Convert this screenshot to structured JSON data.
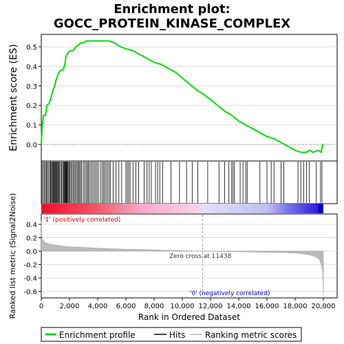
{
  "chart_data": {
    "type": "line",
    "title_line1": "Enrichment plot:",
    "title_line2": "GOCC_PROTEIN_KINASE_COMPLEX",
    "xlabel": "Rank in Ordered Dataset",
    "ylabel_top": "Enrichment score (ES)",
    "ylabel_bottom": "Ranked list metric (Signal2Noise)",
    "xlim": [
      0,
      20000
    ],
    "es_ylim": [
      0.0,
      0.5
    ],
    "metric_ylim": [
      -0.6,
      0.4
    ],
    "x_ticks": [
      "0",
      "2,000",
      "4,000",
      "6,000",
      "8,000",
      "10,000",
      "12,000",
      "14,000",
      "16,000",
      "18,000",
      "20,000"
    ],
    "es_ticks": [
      "0.0",
      "0.1",
      "0.2",
      "0.3",
      "0.4",
      "0.5"
    ],
    "metric_ticks": [
      "0.4",
      "0.2",
      "0.0",
      "-0.2",
      "-0.4",
      "-0.6"
    ],
    "zero_cross_label": "Zero cross at 11438",
    "zero_cross": 11438,
    "positive_label": "'1' (positively correlated)",
    "negative_label": "'0' (negatively correlated)",
    "legend": [
      "Enrichment profile",
      "Hits",
      "Ranking metric scores"
    ],
    "colors": {
      "es_line": "#00dd00",
      "hits": "#000000",
      "metric_fill": "#bbbbbb",
      "positive_text": "#cc0000",
      "negative_text": "#0000cc"
    },
    "enrichment_profile": [
      [
        0,
        0.0
      ],
      [
        60,
        0.09
      ],
      [
        150,
        0.15
      ],
      [
        300,
        0.15
      ],
      [
        400,
        0.2
      ],
      [
        550,
        0.21
      ],
      [
        650,
        0.23
      ],
      [
        800,
        0.27
      ],
      [
        950,
        0.3
      ],
      [
        1050,
        0.33
      ],
      [
        1200,
        0.36
      ],
      [
        1350,
        0.38
      ],
      [
        1500,
        0.38
      ],
      [
        1650,
        0.4
      ],
      [
        1750,
        0.45
      ],
      [
        1900,
        0.47
      ],
      [
        2050,
        0.48
      ],
      [
        2250,
        0.48
      ],
      [
        2450,
        0.5
      ],
      [
        2650,
        0.51
      ],
      [
        2800,
        0.52
      ],
      [
        3000,
        0.52
      ],
      [
        3200,
        0.53
      ],
      [
        3500,
        0.53
      ],
      [
        3800,
        0.53
      ],
      [
        4200,
        0.53
      ],
      [
        4500,
        0.53
      ],
      [
        4800,
        0.53
      ],
      [
        5200,
        0.52
      ],
      [
        5600,
        0.5
      ],
      [
        6000,
        0.49
      ],
      [
        6500,
        0.48
      ],
      [
        7000,
        0.46
      ],
      [
        7500,
        0.44
      ],
      [
        8000,
        0.42
      ],
      [
        8500,
        0.41
      ],
      [
        9000,
        0.39
      ],
      [
        9500,
        0.37
      ],
      [
        10000,
        0.34
      ],
      [
        10500,
        0.31
      ],
      [
        11000,
        0.28
      ],
      [
        11438,
        0.26
      ],
      [
        12000,
        0.23
      ],
      [
        12500,
        0.2
      ],
      [
        13000,
        0.17
      ],
      [
        13500,
        0.15
      ],
      [
        14000,
        0.12
      ],
      [
        14500,
        0.1
      ],
      [
        15000,
        0.08
      ],
      [
        15500,
        0.06
      ],
      [
        16000,
        0.04
      ],
      [
        16500,
        0.03
      ],
      [
        17000,
        0.01
      ],
      [
        17500,
        -0.01
      ],
      [
        18000,
        -0.03
      ],
      [
        18400,
        -0.04
      ],
      [
        18800,
        -0.04
      ],
      [
        19000,
        -0.03
      ],
      [
        19300,
        -0.04
      ],
      [
        19600,
        -0.03
      ],
      [
        19850,
        -0.04
      ],
      [
        19950,
        0.0
      ],
      [
        20000,
        0.0
      ]
    ],
    "hits": [
      60,
      150,
      230,
      300,
      380,
      430,
      520,
      600,
      660,
      720,
      780,
      830,
      880,
      930,
      980,
      1030,
      1080,
      1130,
      1180,
      1240,
      1300,
      1380,
      1450,
      1520,
      1580,
      1640,
      1680,
      1720,
      1760,
      1800,
      1850,
      1900,
      1960,
      2030,
      2100,
      2180,
      2260,
      2340,
      2420,
      2500,
      2580,
      2650,
      2720,
      2800,
      2880,
      3000,
      3100,
      3200,
      3280,
      3350,
      3450,
      3550,
      3650,
      3750,
      3850,
      3950,
      4050,
      4200,
      4320,
      4420,
      4500,
      4600,
      4700,
      4800,
      4900,
      5100,
      5300,
      5500,
      5700,
      6000,
      6100,
      6200,
      6300,
      6500,
      6700,
      6900,
      7300,
      7500,
      7650,
      7800,
      8100,
      8250,
      8400,
      8600,
      9200,
      9800,
      10300,
      10700,
      11100,
      11800,
      12600,
      13000,
      13300,
      13500,
      13600,
      13700,
      14100,
      14300,
      14500,
      14600,
      15500,
      16000,
      16300,
      16500,
      17000,
      17200,
      18200,
      18400,
      18600,
      18800,
      19000,
      19500,
      19800,
      19900
    ],
    "metric_profile": [
      [
        0,
        0.45
      ],
      [
        30,
        0.25
      ],
      [
        80,
        0.18
      ],
      [
        200,
        0.14
      ],
      [
        400,
        0.12
      ],
      [
        700,
        0.1
      ],
      [
        1000,
        0.09
      ],
      [
        1500,
        0.075
      ],
      [
        2000,
        0.065
      ],
      [
        3000,
        0.055
      ],
      [
        4000,
        0.045
      ],
      [
        5000,
        0.035
      ],
      [
        6000,
        0.03
      ],
      [
        7000,
        0.025
      ],
      [
        8000,
        0.018
      ],
      [
        9000,
        0.012
      ],
      [
        10000,
        0.007
      ],
      [
        11000,
        0.002
      ],
      [
        11438,
        0.0
      ],
      [
        12000,
        -0.003
      ],
      [
        13000,
        -0.006
      ],
      [
        14000,
        -0.01
      ],
      [
        15000,
        -0.013
      ],
      [
        16000,
        -0.016
      ],
      [
        17000,
        -0.02
      ],
      [
        17500,
        -0.025
      ],
      [
        18000,
        -0.03
      ],
      [
        18500,
        -0.04
      ],
      [
        19000,
        -0.055
      ],
      [
        19400,
        -0.08
      ],
      [
        19700,
        -0.12
      ],
      [
        19850,
        -0.2
      ],
      [
        19950,
        -0.3
      ],
      [
        20000,
        -0.65
      ]
    ]
  }
}
